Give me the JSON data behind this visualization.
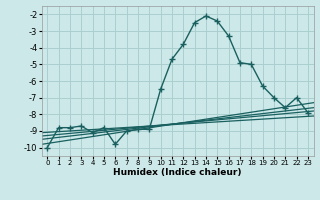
{
  "xlabel": "Humidex (Indice chaleur)",
  "background_color": "#cce8e8",
  "grid_color": "#aacece",
  "line_color": "#1a6060",
  "xlim": [
    -0.5,
    23.5
  ],
  "ylim": [
    -10.5,
    -1.5
  ],
  "yticks": [
    -10,
    -9,
    -8,
    -7,
    -6,
    -5,
    -4,
    -3,
    -2
  ],
  "xticks": [
    0,
    1,
    2,
    3,
    4,
    5,
    6,
    7,
    8,
    9,
    10,
    11,
    12,
    13,
    14,
    15,
    16,
    17,
    18,
    19,
    20,
    21,
    22,
    23
  ],
  "main_series": {
    "x": [
      0,
      1,
      2,
      3,
      4,
      5,
      6,
      7,
      8,
      9,
      10,
      11,
      12,
      13,
      14,
      15,
      16,
      17,
      18,
      19,
      20,
      21,
      22,
      23
    ],
    "y": [
      -10.0,
      -8.8,
      -8.8,
      -8.7,
      -9.1,
      -8.8,
      -9.8,
      -9.0,
      -8.9,
      -8.9,
      -6.5,
      -4.7,
      -3.8,
      -2.5,
      -2.1,
      -2.4,
      -3.3,
      -4.9,
      -5.0,
      -6.3,
      -7.0,
      -7.6,
      -7.0,
      -7.9
    ]
  },
  "trend_lines": [
    {
      "x0": -0.5,
      "y0": -9.8,
      "x1": 23.5,
      "y1": -7.3
    },
    {
      "x0": -0.5,
      "y0": -9.5,
      "x1": 23.5,
      "y1": -7.6
    },
    {
      "x0": -0.5,
      "y0": -9.3,
      "x1": 23.5,
      "y1": -7.8
    },
    {
      "x0": -0.5,
      "y0": -9.1,
      "x1": 23.5,
      "y1": -8.1
    }
  ]
}
